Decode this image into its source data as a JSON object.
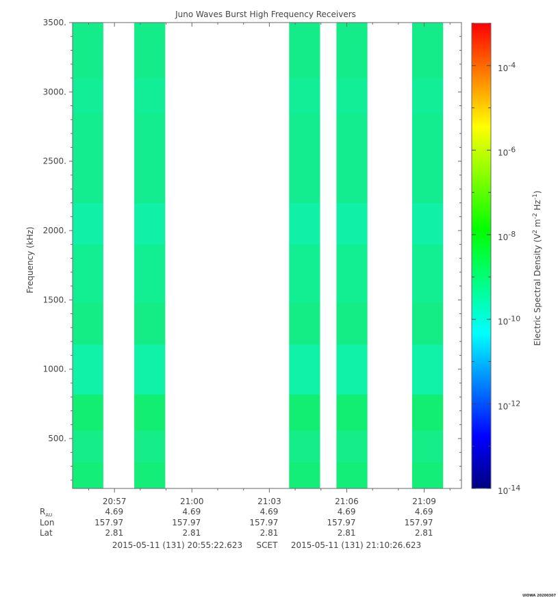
{
  "chart_data": {
    "type": "heatmap",
    "title": "Juno Waves Burst High Frequency Receivers",
    "ylabel": "Frequency (kHz)",
    "colorbar_label_prefix": "Electric Spectral Density (V",
    "colorbar_label_mid": " m",
    "colorbar_label_mid2": " Hz",
    "colorbar_label_suffix": ")",
    "colorbar_label_sup1": "2",
    "colorbar_label_sup2": "-2",
    "colorbar_label_sup3": "-1",
    "ylim": [
      140,
      3500
    ],
    "y_ticks": [
      {
        "value": 500,
        "label": "500."
      },
      {
        "value": 1000,
        "label": "1000."
      },
      {
        "value": 1500,
        "label": "1500."
      },
      {
        "value": 2000,
        "label": "2000."
      },
      {
        "value": 2500,
        "label": "2500."
      },
      {
        "value": 3000,
        "label": "3000."
      },
      {
        "value": 3500,
        "label": "3500."
      }
    ],
    "xlim_seconds_of_day": [
      75322.623,
      76226.623
    ],
    "x_ticks": [
      {
        "label": "20:57",
        "seconds": 75420
      },
      {
        "label": "21:00",
        "seconds": 75600
      },
      {
        "label": "21:03",
        "seconds": 75780
      },
      {
        "label": "21:06",
        "seconds": 75960
      },
      {
        "label": "21:09",
        "seconds": 76140
      }
    ],
    "ephemeris": {
      "labels": [
        "R",
        "Lon",
        "Lat"
      ],
      "r_subscript": "AU",
      "rows": [
        [
          "4.69",
          "4.69",
          "4.69",
          "4.69",
          "4.69"
        ],
        [
          "157.97",
          "157.97",
          "157.97",
          "157.97",
          "157.97"
        ],
        [
          "2.81",
          "2.81",
          "2.81",
          "2.81",
          "2.81"
        ]
      ]
    },
    "time_range": {
      "start": "2015-05-11 (131) 20:55:22.623",
      "label": "SCET",
      "end": "2015-05-11 (131) 21:10:26.623"
    },
    "data_blocks": [
      {
        "start": 75322.623,
        "end": 75394
      },
      {
        "start": 75466,
        "end": 75538
      },
      {
        "start": 75826,
        "end": 75898
      },
      {
        "start": 75936,
        "end": 76008
      },
      {
        "start": 76112,
        "end": 76184
      }
    ],
    "frequency_bands": [
      {
        "from": 140,
        "to": 330,
        "color": "#12ee78"
      },
      {
        "from": 330,
        "to": 560,
        "color": "#14ed88"
      },
      {
        "from": 560,
        "to": 820,
        "color": "#12ee72"
      },
      {
        "from": 820,
        "to": 1180,
        "color": "#10f2a8"
      },
      {
        "from": 1180,
        "to": 1480,
        "color": "#14ec86"
      },
      {
        "from": 1480,
        "to": 1900,
        "color": "#12ee92"
      },
      {
        "from": 1900,
        "to": 2200,
        "color": "#10f0a6"
      },
      {
        "from": 2200,
        "to": 2850,
        "color": "#14ec90"
      },
      {
        "from": 2850,
        "to": 3100,
        "color": "#12ee98"
      },
      {
        "from": 3100,
        "to": 3500,
        "color": "#14ec8a"
      }
    ],
    "colorbar": {
      "scale": "log",
      "range_exp": [
        -14,
        -3
      ],
      "ticks": [
        {
          "exp": -14,
          "label": "10",
          "sup": "-14"
        },
        {
          "exp": -12,
          "label": "10",
          "sup": "-12"
        },
        {
          "exp": -10,
          "label": "10",
          "sup": "-10"
        },
        {
          "exp": -8,
          "label": "10",
          "sup": "-8"
        },
        {
          "exp": -6,
          "label": "10",
          "sup": "-6"
        },
        {
          "exp": -4,
          "label": "10",
          "sup": "-4"
        }
      ],
      "gradient": [
        "#000080",
        "#0000ff",
        "#0080ff",
        "#00ffff",
        "#00ff80",
        "#00ff00",
        "#80ff00",
        "#ffff00",
        "#ff8000",
        "#ff0000"
      ]
    },
    "footer_tag": "UIOWA 20200307"
  }
}
